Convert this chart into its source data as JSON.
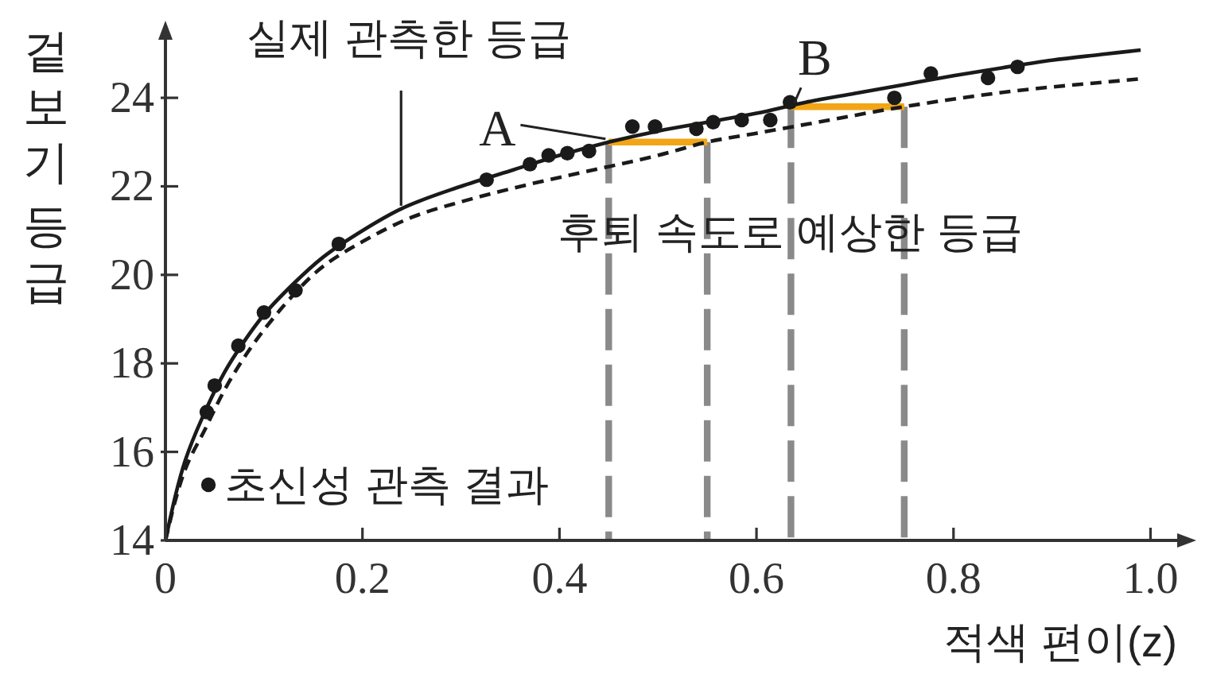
{
  "chart_data": {
    "type": "line",
    "xlabel": "적색 편이(z)",
    "ylabel": "겉보기 등급",
    "xlim": [
      0,
      1.04
    ],
    "ylim": [
      14,
      25.6
    ],
    "xticks": [
      0,
      0.2,
      0.4,
      0.6,
      0.8,
      {
        "value": 1,
        "label": "1.0"
      }
    ],
    "yticks": [
      14,
      16,
      18,
      20,
      22,
      24
    ],
    "legend": "bottom left",
    "annotations": [
      {
        "text": "A",
        "x": 0.45,
        "y": 23.0
      },
      {
        "text": "B",
        "x": 0.635,
        "y": 23.8
      }
    ],
    "series": [
      {
        "color": "#8a8a8a",
        "line_style": "dashed",
        "x": [
          0.45,
          0.45
        ],
        "values": [
          23.0,
          14
        ]
      },
      {
        "color": "#8a8a8a",
        "line_style": "dashed",
        "x": [
          0.55,
          0.55
        ],
        "values": [
          23.0,
          14
        ]
      },
      {
        "color": "#8a8a8a",
        "line_style": "dashed",
        "x": [
          0.635,
          0.635
        ],
        "values": [
          23.8,
          14
        ]
      },
      {
        "color": "#8a8a8a",
        "line_style": "dashed",
        "x": [
          0.75,
          0.75
        ],
        "values": [
          23.8,
          14
        ]
      },
      {
        "color": "#f2a516",
        "line_style": "solid",
        "x": [
          0.45,
          0.55
        ],
        "values": [
          23.0,
          23.0
        ]
      },
      {
        "color": "#f2a516",
        "line_style": "solid",
        "x": [
          0.635,
          0.75
        ],
        "values": [
          23.8,
          23.8
        ]
      },
      {
        "name": "실제 관측한 등급",
        "color": "#1a1a1a",
        "line_style": "solid",
        "x": [
          0,
          0.01,
          0.02,
          0.04,
          0.06,
          0.08,
          0.1,
          0.13,
          0.16,
          0.2,
          0.24,
          0.3,
          0.35,
          0.4,
          0.45,
          0.5,
          0.55,
          0.6,
          0.65,
          0.7,
          0.75,
          0.8,
          0.85,
          0.9,
          0.95,
          0.99
        ],
        "values": [
          14,
          15.0,
          15.8,
          16.9,
          17.8,
          18.5,
          19.1,
          19.8,
          20.4,
          21.0,
          21.5,
          22.0,
          22.35,
          22.7,
          23.0,
          23.25,
          23.45,
          23.65,
          23.9,
          24.1,
          24.3,
          24.5,
          24.68,
          24.85,
          24.98,
          25.08
        ]
      },
      {
        "name": "후퇴 속도로 예상한 등급",
        "color": "#1a1a1a",
        "line_style": "dashed",
        "x": [
          0,
          0.01,
          0.02,
          0.04,
          0.06,
          0.085,
          0.12,
          0.155,
          0.2,
          0.25,
          0.3,
          0.37,
          0.42,
          0.5,
          0.55,
          0.6,
          0.65,
          0.75,
          0.86,
          0.99
        ],
        "values": [
          14,
          14.9,
          15.6,
          16.5,
          17.4,
          18.3,
          19.3,
          20.1,
          20.75,
          21.3,
          21.65,
          22.05,
          22.3,
          22.7,
          23.0,
          23.2,
          23.4,
          23.8,
          24.15,
          24.43
        ]
      },
      {
        "name": "초신성 관측 결과",
        "type": "scatter",
        "color": "#1a1a1a",
        "marker": "circle",
        "x": [
          0.042,
          0.05,
          0.074,
          0.1,
          0.132,
          0.176,
          0.326,
          0.37,
          0.389,
          0.408,
          0.43,
          0.474,
          0.497,
          0.539,
          0.556,
          0.585,
          0.614,
          0.634,
          0.74,
          0.777,
          0.835,
          0.865
        ],
        "values": [
          16.9,
          17.5,
          18.4,
          19.15,
          19.65,
          20.7,
          22.15,
          22.5,
          22.7,
          22.75,
          22.8,
          23.35,
          23.35,
          23.3,
          23.45,
          23.5,
          23.5,
          23.9,
          24.0,
          24.55,
          24.45,
          24.7
        ]
      }
    ]
  }
}
